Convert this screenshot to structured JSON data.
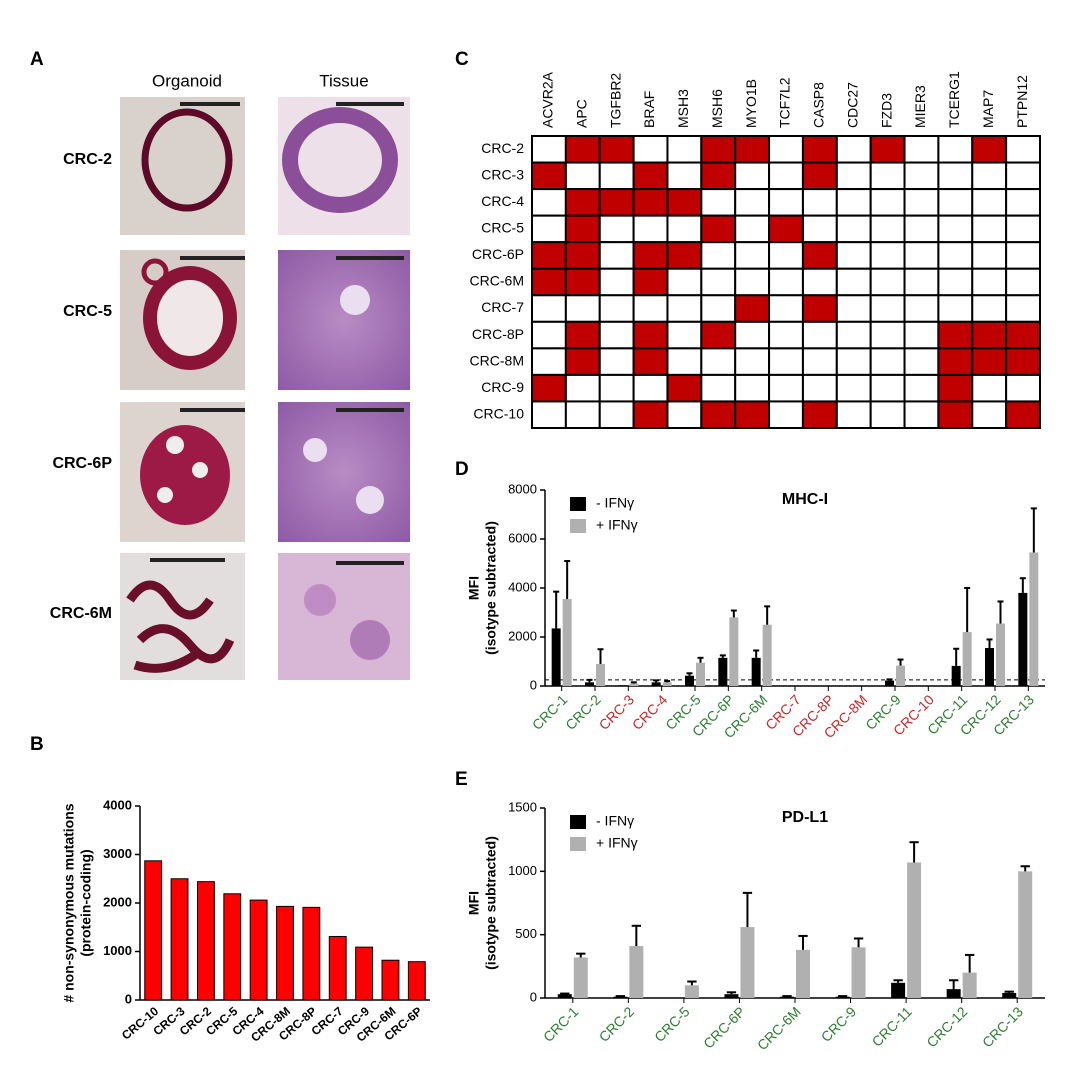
{
  "figure_a": {
    "panel": "A",
    "columns": [
      "Organoid",
      "Tissue"
    ],
    "rows": [
      "CRC-2",
      "CRC-5",
      "CRC-6P",
      "CRC-6M"
    ]
  },
  "chart_data": [
    {
      "type": "bar",
      "panel": "B",
      "ylabel": [
        "# non-synonymous mutations",
        "(protein-coding)"
      ],
      "categories": [
        "CRC-10",
        "CRC-3",
        "CRC-2",
        "CRC-5",
        "CRC-4",
        "CRC-8M",
        "CRC-8P",
        "CRC-7",
        "CRC-9",
        "CRC-6M",
        "CRC-6P"
      ],
      "values": [
        2870,
        2500,
        2440,
        2190,
        2060,
        1930,
        1910,
        1310,
        1090,
        820,
        790
      ],
      "color": "#ff0000",
      "ylim": [
        0,
        4000
      ],
      "yticks": [
        0,
        1000,
        2000,
        3000,
        4000
      ]
    },
    {
      "type": "heatmap",
      "panel": "C",
      "color": "#c00000",
      "columns": [
        "ACVR2A",
        "APC",
        "TGFBR2",
        "BRAF",
        "MSH3",
        "MSH6",
        "MYO1B",
        "TCF7L2",
        "CASP8",
        "CDC27",
        "FZD3",
        "MIER3",
        "TCERG1",
        "MAP7",
        "PTPN12"
      ],
      "rows": [
        "CRC-2",
        "CRC-3",
        "CRC-4",
        "CRC-5",
        "CRC-6P",
        "CRC-6M",
        "CRC-7",
        "CRC-8P",
        "CRC-8M",
        "CRC-9",
        "CRC-10"
      ],
      "values": [
        [
          0,
          1,
          1,
          0,
          0,
          1,
          1,
          0,
          1,
          0,
          1,
          0,
          0,
          1,
          0
        ],
        [
          1,
          0,
          0,
          1,
          0,
          1,
          0,
          0,
          1,
          0,
          0,
          0,
          0,
          0,
          0
        ],
        [
          0,
          1,
          1,
          1,
          1,
          0,
          0,
          0,
          0,
          0,
          0,
          0,
          0,
          0,
          0
        ],
        [
          0,
          1,
          0,
          0,
          0,
          1,
          0,
          1,
          0,
          0,
          0,
          0,
          0,
          0,
          0
        ],
        [
          1,
          1,
          0,
          1,
          1,
          0,
          0,
          0,
          1,
          0,
          0,
          0,
          0,
          0,
          0
        ],
        [
          1,
          1,
          0,
          1,
          0,
          0,
          0,
          0,
          0,
          0,
          0,
          0,
          0,
          0,
          0
        ],
        [
          0,
          0,
          0,
          0,
          0,
          0,
          1,
          0,
          1,
          0,
          0,
          0,
          0,
          0,
          0
        ],
        [
          0,
          1,
          0,
          1,
          0,
          1,
          0,
          0,
          0,
          0,
          0,
          0,
          1,
          1,
          1
        ],
        [
          0,
          1,
          0,
          1,
          0,
          0,
          0,
          0,
          0,
          0,
          0,
          0,
          1,
          1,
          1
        ],
        [
          1,
          0,
          0,
          0,
          1,
          0,
          0,
          0,
          0,
          0,
          0,
          0,
          1,
          0,
          0
        ],
        [
          0,
          0,
          0,
          1,
          0,
          1,
          1,
          0,
          1,
          0,
          0,
          0,
          1,
          0,
          1
        ]
      ]
    },
    {
      "type": "grouped_bar",
      "panel": "D",
      "title": "MHC-I",
      "ylabel": [
        "MFI",
        "(isotype subtracted)"
      ],
      "categories": [
        "CRC-1",
        "CRC-2",
        "CRC-3",
        "CRC-4",
        "CRC-5",
        "CRC-6P",
        "CRC-6M",
        "CRC-7",
        "CRC-8P",
        "CRC-8M",
        "CRC-9",
        "CRC-10",
        "CRC-11",
        "CRC-12",
        "CRC-13"
      ],
      "category_colors": [
        "#2e7d32",
        "#2e7d32",
        "#c62828",
        "#c62828",
        "#2e7d32",
        "#2e7d32",
        "#2e7d32",
        "#c62828",
        "#c62828",
        "#c62828",
        "#2e7d32",
        "#c62828",
        "#2e7d32",
        "#2e7d32",
        "#2e7d32"
      ],
      "series": [
        {
          "name": "- IFNγ",
          "color": "#000000",
          "values": [
            2350,
            150,
            30,
            150,
            420,
            1150,
            1150,
            null,
            null,
            null,
            220,
            null,
            820,
            1550,
            3800
          ],
          "errors": [
            1500,
            100,
            0,
            80,
            100,
            100,
            300,
            null,
            null,
            null,
            50,
            null,
            700,
            350,
            600
          ]
        },
        {
          "name": "+ IFNγ",
          "color": "#b0b0b0",
          "values": [
            3550,
            900,
            100,
            150,
            950,
            2800,
            2500,
            null,
            null,
            null,
            830,
            null,
            2200,
            2550,
            5450
          ],
          "errors": [
            1550,
            600,
            50,
            50,
            200,
            280,
            750,
            null,
            null,
            null,
            250,
            null,
            1800,
            900,
            1800
          ]
        }
      ],
      "hline": 250,
      "legend": "upper left",
      "ylim": [
        0,
        8000
      ],
      "yticks": [
        0,
        2000,
        4000,
        6000,
        8000
      ]
    },
    {
      "type": "grouped_bar",
      "panel": "E",
      "title": "PD-L1",
      "ylabel": [
        "MFI",
        "(isotype subtracted)"
      ],
      "categories": [
        "CRC-1",
        "CRC-2",
        "CRC-5",
        "CRC-6P",
        "CRC-6M",
        "CRC-9",
        "CRC-11",
        "CRC-12",
        "CRC-13"
      ],
      "category_colors": [
        "#2e7d32",
        "#2e7d32",
        "#2e7d32",
        "#2e7d32",
        "#2e7d32",
        "#2e7d32",
        "#2e7d32",
        "#2e7d32",
        "#2e7d32"
      ],
      "series": [
        {
          "name": "- IFNγ",
          "color": "#000000",
          "values": [
            30,
            10,
            0,
            30,
            10,
            10,
            120,
            70,
            40
          ],
          "errors": [
            5,
            5,
            0,
            15,
            5,
            5,
            20,
            70,
            10
          ]
        },
        {
          "name": "+ IFNγ",
          "color": "#b0b0b0",
          "values": [
            320,
            410,
            100,
            560,
            380,
            400,
            1070,
            200,
            1000
          ],
          "errors": [
            30,
            160,
            30,
            270,
            110,
            70,
            160,
            140,
            40
          ]
        }
      ],
      "legend": "upper left",
      "ylim": [
        0,
        1500
      ],
      "yticks": [
        0,
        500,
        1000,
        1500
      ]
    }
  ]
}
